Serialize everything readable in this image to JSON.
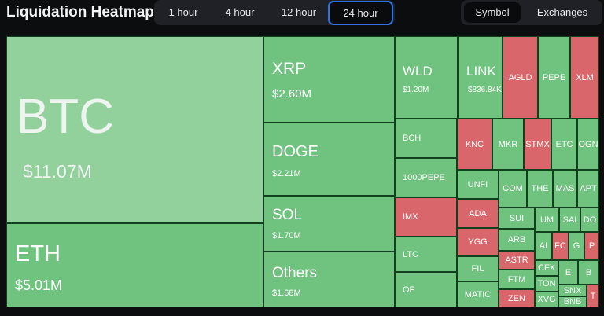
{
  "header": {
    "title": "Liquidation Heatmap"
  },
  "time_tabs": [
    {
      "label": "1 hour",
      "active": false
    },
    {
      "label": "4 hour",
      "active": false
    },
    {
      "label": "12 hour",
      "active": false
    },
    {
      "label": "24 hour",
      "active": true
    }
  ],
  "view_tabs": [
    {
      "label": "Symbol",
      "active": true
    },
    {
      "label": "Exchanges",
      "active": false
    }
  ],
  "colors": {
    "green": "#6fc37f",
    "light_green": "#92d09c",
    "red": "#d9666a",
    "background": "#0c0d0f",
    "accent": "#2f73e6"
  },
  "tiles": {
    "btc": {
      "name": "BTC",
      "value": "$11.07M"
    },
    "eth": {
      "name": "ETH",
      "value": "$5.01M"
    },
    "xrp": {
      "name": "XRP",
      "value": "$2.60M"
    },
    "doge": {
      "name": "DOGE",
      "value": "$2.21M"
    },
    "sol": {
      "name": "SOL",
      "value": "$1.70M"
    },
    "others": {
      "name": "Others",
      "value": "$1.68M"
    },
    "wld": {
      "name": "WLD",
      "value": "$1.20M"
    },
    "link": {
      "name": "LINK",
      "value": "$836.84K"
    },
    "bch": {
      "name": "BCH"
    },
    "pepe1000": {
      "name": "1000PEPE"
    },
    "imx": {
      "name": "IMX"
    },
    "ltc": {
      "name": "LTC"
    },
    "op": {
      "name": "OP"
    },
    "agld": {
      "name": "AGLD"
    },
    "pepe": {
      "name": "PEPE"
    },
    "xlm": {
      "name": "XLM"
    },
    "knc": {
      "name": "KNC"
    },
    "mkr": {
      "name": "MKR"
    },
    "stmx": {
      "name": "STMX"
    },
    "etc": {
      "name": "ETC"
    },
    "ogn": {
      "name": "OGN"
    },
    "unfi": {
      "name": "UNFI"
    },
    "comp": {
      "name": "COM"
    },
    "the": {
      "name": "THE"
    },
    "mask": {
      "name": "MAS"
    },
    "apt": {
      "name": "APT"
    },
    "ada": {
      "name": "ADA"
    },
    "sui": {
      "name": "SUI"
    },
    "uma": {
      "name": "UM"
    },
    "sand": {
      "name": "SAI"
    },
    "dot": {
      "name": "DO"
    },
    "ygg": {
      "name": "YGG"
    },
    "arb": {
      "name": "ARB"
    },
    "ar": {
      "name": "AI"
    },
    "fet": {
      "name": "FC"
    },
    "g": {
      "name": "G"
    },
    "p": {
      "name": "P"
    },
    "fil": {
      "name": "FIL"
    },
    "astr": {
      "name": "ASTR"
    },
    "cfx": {
      "name": "CFX"
    },
    "e": {
      "name": "E"
    },
    "b": {
      "name": "B"
    },
    "ftm": {
      "name": "FTM"
    },
    "ton": {
      "name": "TON"
    },
    "matic": {
      "name": "MATIC"
    },
    "zen": {
      "name": "ZEN"
    },
    "xvg": {
      "name": "XVG"
    },
    "snx": {
      "name": "SNX"
    },
    "bnb": {
      "name": "BNB"
    },
    "t": {
      "name": "T"
    }
  }
}
